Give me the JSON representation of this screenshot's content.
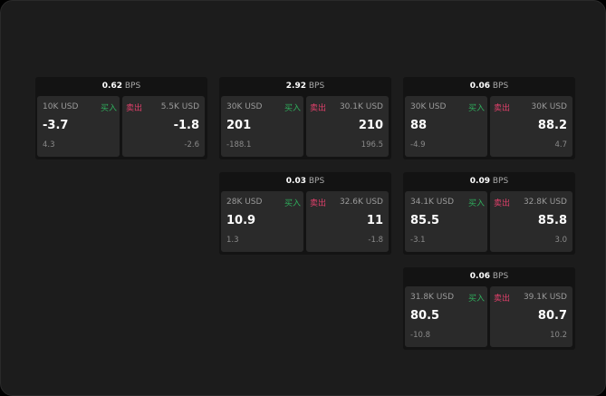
{
  "unit": "BPS",
  "labels": {
    "buy": "买入",
    "sell": "卖出"
  },
  "colors": {
    "buy": "#2fae5c",
    "sell": "#e0406b",
    "background": "#1c1c1c"
  },
  "cards": [
    {
      "spread": "0.62",
      "bid": {
        "size": "10K USD",
        "price": "-3.7",
        "change": "4.3"
      },
      "ask": {
        "size": "5.5K USD",
        "price": "-1.8",
        "change": "-2.6"
      }
    },
    {
      "spread": "2.92",
      "bid": {
        "size": "30K USD",
        "price": "201",
        "change": "-188.1"
      },
      "ask": {
        "size": "30.1K USD",
        "price": "210",
        "change": "196.5"
      }
    },
    {
      "spread": "0.06",
      "bid": {
        "size": "30K USD",
        "price": "88",
        "change": "-4.9"
      },
      "ask": {
        "size": "30K USD",
        "price": "88.2",
        "change": "4.7"
      }
    },
    {
      "spread": "0.03",
      "bid": {
        "size": "28K USD",
        "price": "10.9",
        "change": "1.3"
      },
      "ask": {
        "size": "32.6K USD",
        "price": "11",
        "change": "-1.8"
      }
    },
    {
      "spread": "0.09",
      "bid": {
        "size": "34.1K USD",
        "price": "85.5",
        "change": "-3.1"
      },
      "ask": {
        "size": "32.8K USD",
        "price": "85.8",
        "change": "3.0"
      }
    },
    {
      "spread": "0.06",
      "bid": {
        "size": "31.8K USD",
        "price": "80.5",
        "change": "-10.8"
      },
      "ask": {
        "size": "39.1K USD",
        "price": "80.7",
        "change": "10.2"
      }
    }
  ]
}
